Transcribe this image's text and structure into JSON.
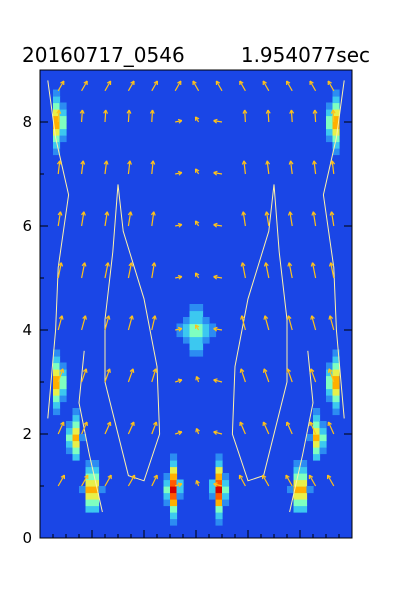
{
  "chart_data": {
    "type": "heatmap",
    "title_left": "20160717_0546",
    "title_right": "1.954077sec",
    "xlabel": "",
    "ylabel": "",
    "xlim": [
      0,
      6
    ],
    "ylim": [
      0,
      9
    ],
    "yticks": [
      0,
      2,
      4,
      6,
      8
    ],
    "ytick_labels": [
      "0",
      "2",
      "4",
      "6",
      "8"
    ],
    "background_color": "#1a46e6",
    "colormap": [
      "#0a1fd0",
      "#1a46e6",
      "#2c8cf2",
      "#3cc8f0",
      "#7fffc0",
      "#e8f04a",
      "#ffb000",
      "#ff5a00",
      "#d40000"
    ],
    "arrow_color": "#ffc21a",
    "contour_color": "#fff2a8",
    "hotspots": [
      {
        "x": 0.35,
        "y": 8.0,
        "amplitude": 1.0,
        "sx": 0.14,
        "sy": 0.62
      },
      {
        "x": 5.65,
        "y": 8.0,
        "amplitude": 1.0,
        "sx": 0.14,
        "sy": 0.62
      },
      {
        "x": 0.35,
        "y": 3.0,
        "amplitude": 1.0,
        "sx": 0.14,
        "sy": 0.62
      },
      {
        "x": 5.65,
        "y": 3.0,
        "amplitude": 1.0,
        "sx": 0.14,
        "sy": 0.62
      },
      {
        "x": 0.65,
        "y": 1.95,
        "amplitude": 0.85,
        "sx": 0.14,
        "sy": 0.55
      },
      {
        "x": 5.35,
        "y": 1.95,
        "amplitude": 0.85,
        "sx": 0.14,
        "sy": 0.55
      },
      {
        "x": 1.0,
        "y": 0.95,
        "amplitude": 1.0,
        "sx": 0.16,
        "sy": 0.6
      },
      {
        "x": 5.0,
        "y": 0.95,
        "amplitude": 1.0,
        "sx": 0.16,
        "sy": 0.6
      },
      {
        "x": 2.55,
        "y": 0.95,
        "amplitude": 1.0,
        "sx": 0.16,
        "sy": 0.6
      },
      {
        "x": 3.45,
        "y": 0.95,
        "amplitude": 1.0,
        "sx": 0.16,
        "sy": 0.6
      },
      {
        "x": 3.0,
        "y": 4.0,
        "amplitude": 0.55,
        "sx": 0.33,
        "sy": 0.6
      }
    ],
    "quiver_x": [
      0.35,
      0.8,
      1.25,
      1.7,
      2.15,
      2.6,
      3.05,
      3.5,
      3.95,
      4.4,
      4.85,
      5.3,
      5.65
    ],
    "quiver_y": [
      1.0,
      2.0,
      3.0,
      4.0,
      5.0,
      6.0,
      7.0,
      8.0,
      8.6
    ],
    "contours": [
      [
        [
          0.15,
          8.8
        ],
        [
          0.3,
          7.7
        ],
        [
          0.55,
          6.6
        ],
        [
          0.35,
          5.2
        ],
        [
          0.3,
          4.0
        ],
        [
          0.15,
          2.3
        ]
      ],
      [
        [
          5.85,
          8.8
        ],
        [
          5.7,
          7.7
        ],
        [
          5.45,
          6.6
        ],
        [
          5.65,
          5.2
        ],
        [
          5.7,
          4.0
        ],
        [
          5.85,
          2.3
        ]
      ],
      [
        [
          1.5,
          6.8
        ],
        [
          1.4,
          5.5
        ],
        [
          1.25,
          4.2
        ],
        [
          1.25,
          3.0
        ],
        [
          1.5,
          2.0
        ],
        [
          1.7,
          1.2
        ],
        [
          2.0,
          1.1
        ],
        [
          2.3,
          2.0
        ],
        [
          2.25,
          3.3
        ],
        [
          2.0,
          4.6
        ],
        [
          1.6,
          5.9
        ],
        [
          1.5,
          6.8
        ]
      ],
      [
        [
          4.5,
          6.8
        ],
        [
          4.6,
          5.5
        ],
        [
          4.75,
          4.2
        ],
        [
          4.75,
          3.0
        ],
        [
          4.5,
          2.0
        ],
        [
          4.3,
          1.2
        ],
        [
          4.0,
          1.1
        ],
        [
          3.7,
          2.0
        ],
        [
          3.75,
          3.3
        ],
        [
          4.0,
          4.6
        ],
        [
          4.4,
          5.9
        ],
        [
          4.5,
          6.8
        ]
      ],
      [
        [
          0.85,
          3.6
        ],
        [
          0.75,
          2.6
        ],
        [
          0.95,
          1.6
        ],
        [
          1.2,
          0.5
        ]
      ],
      [
        [
          5.15,
          3.6
        ],
        [
          5.25,
          2.6
        ],
        [
          5.05,
          1.6
        ],
        [
          4.8,
          0.5
        ]
      ]
    ]
  }
}
